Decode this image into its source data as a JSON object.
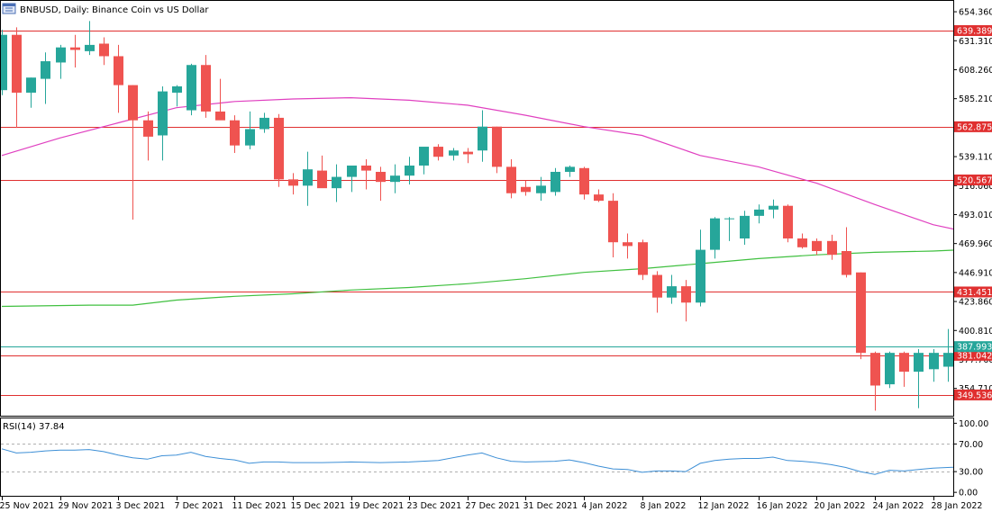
{
  "header": {
    "title": "BNBUSD, Daily:  Binance Coin vs US Dollar",
    "icon": "chart-window-icon"
  },
  "chart_data": {
    "type": "candlestick",
    "symbol": "BNBUSD",
    "timeframe": "Daily",
    "ylim": [
      333,
      663
    ],
    "y_ticks": [
      "654.360",
      "631.310",
      "608.260",
      "585.210",
      "562.160",
      "539.110",
      "516.060",
      "493.010",
      "469.960",
      "446.910",
      "423.860",
      "400.810",
      "377.760",
      "354.710"
    ],
    "x_ticks": [
      {
        "label": "25 Nov 2021",
        "index": 0
      },
      {
        "label": "29 Nov 2021",
        "index": 4
      },
      {
        "label": "3 Dec 2021",
        "index": 8
      },
      {
        "label": "7 Dec 2021",
        "index": 12
      },
      {
        "label": "11 Dec 2021",
        "index": 16
      },
      {
        "label": "15 Dec 2021",
        "index": 20
      },
      {
        "label": "19 Dec 2021",
        "index": 24
      },
      {
        "label": "23 Dec 2021",
        "index": 28
      },
      {
        "label": "27 Dec 2021",
        "index": 32
      },
      {
        "label": "31 Dec 2021",
        "index": 36
      },
      {
        "label": "4 Jan 2022",
        "index": 40
      },
      {
        "label": "8 Jan 2022",
        "index": 44
      },
      {
        "label": "12 Jan 2022",
        "index": 48
      },
      {
        "label": "16 Jan 2022",
        "index": 52
      },
      {
        "label": "20 Jan 2022",
        "index": 56
      },
      {
        "label": "24 Jan 2022",
        "index": 60
      },
      {
        "label": "28 Jan 2022",
        "index": 64
      }
    ],
    "candles": [
      {
        "o": 592,
        "h": 640,
        "l": 588,
        "c": 636
      },
      {
        "o": 636,
        "h": 642,
        "l": 562,
        "c": 590
      },
      {
        "o": 590,
        "h": 602,
        "l": 578,
        "c": 602
      },
      {
        "o": 601,
        "h": 622,
        "l": 581,
        "c": 615
      },
      {
        "o": 614,
        "h": 628,
        "l": 601,
        "c": 626
      },
      {
        "o": 626,
        "h": 636,
        "l": 610,
        "c": 624
      },
      {
        "o": 623,
        "h": 647,
        "l": 620,
        "c": 628
      },
      {
        "o": 629,
        "h": 634,
        "l": 612,
        "c": 619
      },
      {
        "o": 619,
        "h": 628,
        "l": 574,
        "c": 596
      },
      {
        "o": 596,
        "h": 596,
        "l": 489,
        "c": 568
      },
      {
        "o": 568,
        "h": 575,
        "l": 536,
        "c": 555
      },
      {
        "o": 556,
        "h": 595,
        "l": 536,
        "c": 591
      },
      {
        "o": 590,
        "h": 596,
        "l": 579,
        "c": 595
      },
      {
        "o": 576,
        "h": 613,
        "l": 572,
        "c": 612
      },
      {
        "o": 612,
        "h": 620,
        "l": 570,
        "c": 575
      },
      {
        "o": 575,
        "h": 601,
        "l": 569,
        "c": 568
      },
      {
        "o": 568,
        "h": 572,
        "l": 542,
        "c": 548
      },
      {
        "o": 548,
        "h": 575,
        "l": 545,
        "c": 561
      },
      {
        "o": 561,
        "h": 574,
        "l": 558,
        "c": 570
      },
      {
        "o": 570,
        "h": 573,
        "l": 515,
        "c": 521
      },
      {
        "o": 521,
        "h": 526,
        "l": 509,
        "c": 516
      },
      {
        "o": 516,
        "h": 543,
        "l": 500,
        "c": 529
      },
      {
        "o": 528,
        "h": 540,
        "l": 517,
        "c": 514
      },
      {
        "o": 514,
        "h": 533,
        "l": 503,
        "c": 523
      },
      {
        "o": 523,
        "h": 530,
        "l": 511,
        "c": 532
      },
      {
        "o": 532,
        "h": 537,
        "l": 513,
        "c": 528
      },
      {
        "o": 527,
        "h": 531,
        "l": 504,
        "c": 519
      },
      {
        "o": 519,
        "h": 533,
        "l": 510,
        "c": 524
      },
      {
        "o": 524,
        "h": 539,
        "l": 517,
        "c": 532
      },
      {
        "o": 532,
        "h": 545,
        "l": 525,
        "c": 547
      },
      {
        "o": 547,
        "h": 549,
        "l": 536,
        "c": 539
      },
      {
        "o": 540,
        "h": 546,
        "l": 536,
        "c": 544
      },
      {
        "o": 543,
        "h": 546,
        "l": 534,
        "c": 541
      },
      {
        "o": 544,
        "h": 576,
        "l": 535,
        "c": 563
      },
      {
        "o": 563,
        "h": 563,
        "l": 526,
        "c": 531
      },
      {
        "o": 531,
        "h": 537,
        "l": 506,
        "c": 510
      },
      {
        "o": 515,
        "h": 520,
        "l": 508,
        "c": 511
      },
      {
        "o": 510,
        "h": 523,
        "l": 504,
        "c": 516
      },
      {
        "o": 511,
        "h": 530,
        "l": 508,
        "c": 527
      },
      {
        "o": 527,
        "h": 532,
        "l": 523,
        "c": 531
      },
      {
        "o": 530,
        "h": 531,
        "l": 505,
        "c": 509
      },
      {
        "o": 509,
        "h": 513,
        "l": 503,
        "c": 504
      },
      {
        "o": 504,
        "h": 510,
        "l": 459,
        "c": 471
      },
      {
        "o": 471,
        "h": 478,
        "l": 458,
        "c": 468
      },
      {
        "o": 471,
        "h": 473,
        "l": 441,
        "c": 445
      },
      {
        "o": 445,
        "h": 448,
        "l": 415,
        "c": 427
      },
      {
        "o": 427,
        "h": 445,
        "l": 422,
        "c": 436
      },
      {
        "o": 436,
        "h": 441,
        "l": 408,
        "c": 423
      },
      {
        "o": 423,
        "h": 481,
        "l": 420,
        "c": 465
      },
      {
        "o": 465,
        "h": 491,
        "l": 458,
        "c": 490
      },
      {
        "o": 490,
        "h": 491,
        "l": 472,
        "c": 490
      },
      {
        "o": 474,
        "h": 496,
        "l": 469,
        "c": 492
      },
      {
        "o": 492,
        "h": 501,
        "l": 486,
        "c": 497
      },
      {
        "o": 497,
        "h": 505,
        "l": 490,
        "c": 500
      },
      {
        "o": 500,
        "h": 501,
        "l": 471,
        "c": 474
      },
      {
        "o": 474,
        "h": 478,
        "l": 466,
        "c": 467
      },
      {
        "o": 472,
        "h": 474,
        "l": 461,
        "c": 464
      },
      {
        "o": 472,
        "h": 477,
        "l": 457,
        "c": 461
      },
      {
        "o": 464,
        "h": 483,
        "l": 443,
        "c": 445
      },
      {
        "o": 447,
        "h": 447,
        "l": 378,
        "c": 383
      },
      {
        "o": 383,
        "h": 384,
        "l": 337,
        "c": 357
      },
      {
        "o": 358,
        "h": 384,
        "l": 355,
        "c": 383
      },
      {
        "o": 383,
        "h": 384,
        "l": 356,
        "c": 368
      },
      {
        "o": 368,
        "h": 386,
        "l": 339,
        "c": 383
      },
      {
        "o": 370,
        "h": 386,
        "l": 360,
        "c": 383
      },
      {
        "o": 372,
        "h": 402,
        "l": 360,
        "c": 383
      },
      {
        "o": 375,
        "h": 396,
        "l": 362,
        "c": 390
      },
      {
        "o": 390,
        "h": 397,
        "l": 379,
        "c": 384
      },
      {
        "o": 384,
        "h": 399,
        "l": 380,
        "c": 388
      }
    ],
    "moving_averages": [
      {
        "color": "#e040c0",
        "values": [
          {
            "i": 0,
            "v": 540
          },
          {
            "i": 4,
            "v": 554
          },
          {
            "i": 8,
            "v": 566
          },
          {
            "i": 12,
            "v": 578
          },
          {
            "i": 16,
            "v": 583
          },
          {
            "i": 20,
            "v": 585
          },
          {
            "i": 24,
            "v": 586
          },
          {
            "i": 28,
            "v": 584
          },
          {
            "i": 32,
            "v": 580
          },
          {
            "i": 36,
            "v": 572
          },
          {
            "i": 40,
            "v": 563
          },
          {
            "i": 44,
            "v": 556
          },
          {
            "i": 48,
            "v": 540
          },
          {
            "i": 52,
            "v": 531
          },
          {
            "i": 56,
            "v": 518
          },
          {
            "i": 60,
            "v": 501
          },
          {
            "i": 64,
            "v": 485
          },
          {
            "i": 66,
            "v": 480
          }
        ]
      },
      {
        "color": "#40c040",
        "values": [
          {
            "i": 0,
            "v": 420
          },
          {
            "i": 6,
            "v": 421
          },
          {
            "i": 9,
            "v": 421
          },
          {
            "i": 12,
            "v": 425
          },
          {
            "i": 16,
            "v": 428
          },
          {
            "i": 20,
            "v": 430
          },
          {
            "i": 24,
            "v": 433
          },
          {
            "i": 28,
            "v": 435
          },
          {
            "i": 32,
            "v": 438
          },
          {
            "i": 36,
            "v": 442
          },
          {
            "i": 40,
            "v": 447
          },
          {
            "i": 44,
            "v": 450
          },
          {
            "i": 48,
            "v": 454
          },
          {
            "i": 52,
            "v": 458
          },
          {
            "i": 56,
            "v": 461
          },
          {
            "i": 60,
            "v": 463
          },
          {
            "i": 64,
            "v": 464
          },
          {
            "i": 66,
            "v": 465
          }
        ]
      }
    ],
    "levels": [
      {
        "value": 639.389,
        "label": "639.389",
        "color": "#e03030"
      },
      {
        "value": 562.875,
        "label": "562.875",
        "color": "#e03030"
      },
      {
        "value": 520.567,
        "label": "520.567",
        "color": "#e03030"
      },
      {
        "value": 431.451,
        "label": "431.451",
        "color": "#e03030"
      },
      {
        "value": 381.042,
        "label": "381.042",
        "color": "#e03030"
      },
      {
        "value": 349.536,
        "label": "349.536",
        "color": "#e03030"
      }
    ],
    "current_price": {
      "value": 387.993,
      "label": "387.993",
      "color": "#26a69a"
    },
    "up_color": "#26a69a",
    "down_color": "#ef5350",
    "rsi": {
      "label": "RSI(14) 37.84",
      "color": "#3d8fd6",
      "ylim": [
        -5,
        107
      ],
      "ticks": [
        "100.00",
        "70.00",
        "30.00",
        "0.00"
      ],
      "levels": [
        70,
        30
      ],
      "values": [
        {
          "i": 0,
          "v": 63
        },
        {
          "i": 1,
          "v": 57
        },
        {
          "i": 2,
          "v": 58
        },
        {
          "i": 3,
          "v": 60
        },
        {
          "i": 4,
          "v": 61
        },
        {
          "i": 5,
          "v": 61
        },
        {
          "i": 6,
          "v": 62
        },
        {
          "i": 7,
          "v": 59
        },
        {
          "i": 8,
          "v": 54
        },
        {
          "i": 9,
          "v": 50
        },
        {
          "i": 10,
          "v": 48
        },
        {
          "i": 11,
          "v": 53
        },
        {
          "i": 12,
          "v": 54
        },
        {
          "i": 13,
          "v": 58
        },
        {
          "i": 14,
          "v": 52
        },
        {
          "i": 15,
          "v": 49
        },
        {
          "i": 16,
          "v": 47
        },
        {
          "i": 17,
          "v": 42
        },
        {
          "i": 18,
          "v": 44
        },
        {
          "i": 19,
          "v": 44
        },
        {
          "i": 20,
          "v": 43
        },
        {
          "i": 22,
          "v": 43
        },
        {
          "i": 24,
          "v": 44
        },
        {
          "i": 26,
          "v": 43
        },
        {
          "i": 28,
          "v": 44
        },
        {
          "i": 30,
          "v": 46
        },
        {
          "i": 32,
          "v": 54
        },
        {
          "i": 33,
          "v": 57
        },
        {
          "i": 34,
          "v": 50
        },
        {
          "i": 35,
          "v": 45
        },
        {
          "i": 36,
          "v": 44
        },
        {
          "i": 38,
          "v": 45
        },
        {
          "i": 39,
          "v": 47
        },
        {
          "i": 40,
          "v": 43
        },
        {
          "i": 41,
          "v": 38
        },
        {
          "i": 42,
          "v": 34
        },
        {
          "i": 43,
          "v": 33
        },
        {
          "i": 44,
          "v": 29
        },
        {
          "i": 45,
          "v": 31
        },
        {
          "i": 46,
          "v": 31
        },
        {
          "i": 47,
          "v": 30
        },
        {
          "i": 48,
          "v": 42
        },
        {
          "i": 49,
          "v": 46
        },
        {
          "i": 50,
          "v": 48
        },
        {
          "i": 51,
          "v": 49
        },
        {
          "i": 52,
          "v": 49
        },
        {
          "i": 53,
          "v": 51
        },
        {
          "i": 54,
          "v": 46
        },
        {
          "i": 55,
          "v": 45
        },
        {
          "i": 56,
          "v": 43
        },
        {
          "i": 57,
          "v": 40
        },
        {
          "i": 58,
          "v": 36
        },
        {
          "i": 59,
          "v": 30
        },
        {
          "i": 60,
          "v": 26
        },
        {
          "i": 61,
          "v": 32
        },
        {
          "i": 62,
          "v": 31
        },
        {
          "i": 63,
          "v": 33
        },
        {
          "i": 64,
          "v": 35
        },
        {
          "i": 65,
          "v": 36
        },
        {
          "i": 66,
          "v": 37
        },
        {
          "i": 67,
          "v": 37.84
        }
      ]
    }
  }
}
